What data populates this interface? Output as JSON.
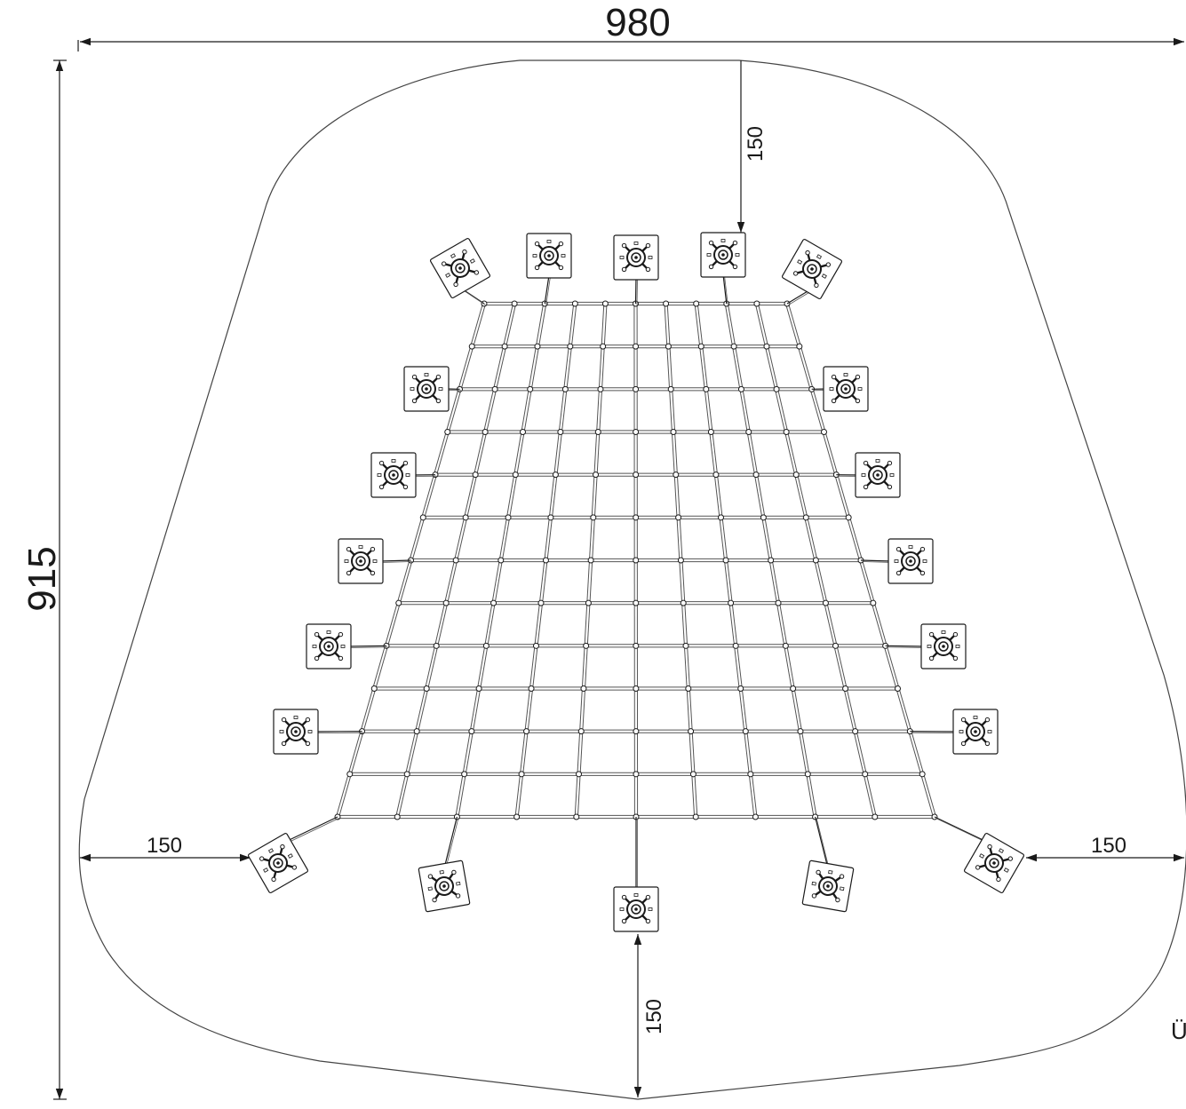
{
  "dimensions": {
    "total_width": "980",
    "total_height": "915",
    "clearance_top": "150",
    "clearance_left": "150",
    "clearance_right": "150",
    "clearance_bottom": "150"
  },
  "edge_label": "Ü",
  "colors": {
    "line": "#1a1a1a",
    "outline": "#444444",
    "net": "#555555"
  }
}
